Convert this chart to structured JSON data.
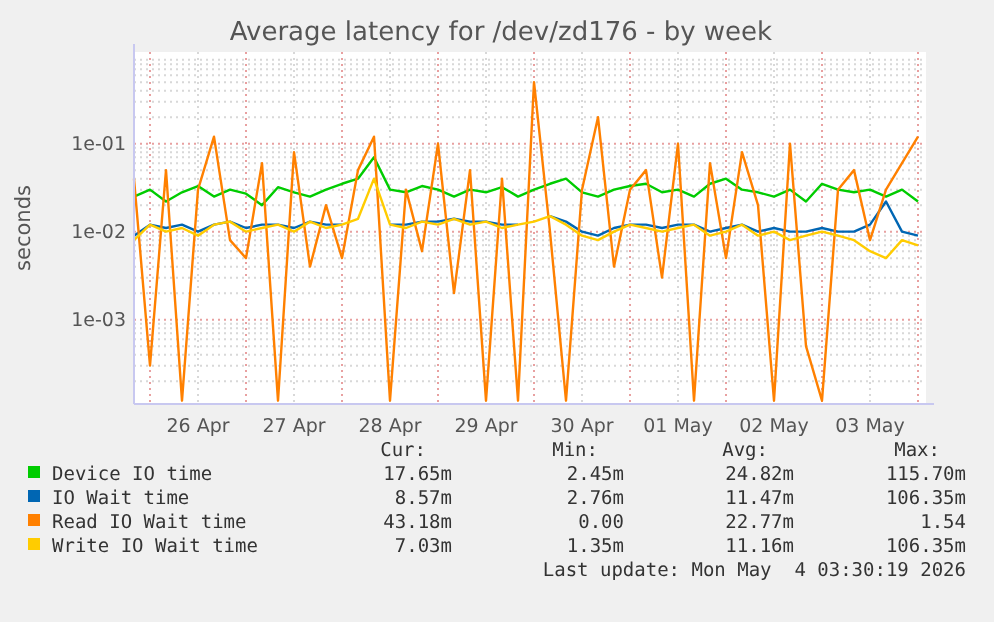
{
  "chart_data": {
    "type": "line",
    "title": "Average latency for /dev/zd176 - by week",
    "ylabel": "seconds",
    "log": "y",
    "grid": true,
    "legend": "bottom",
    "marker": "none",
    "line_style": "solid",
    "xlim": [
      "2026-04-25T20:00",
      "2026-05-04T02:00"
    ],
    "xticks": [
      {
        "value": "2026-04-26T00:00",
        "label": null
      },
      {
        "value": "2026-04-26T12:00",
        "label": "26 Apr"
      },
      {
        "value": "2026-04-27T00:00",
        "label": null
      },
      {
        "value": "2026-04-27T12:00",
        "label": "27 Apr"
      },
      {
        "value": "2026-04-28T00:00",
        "label": null
      },
      {
        "value": "2026-04-28T12:00",
        "label": "28 Apr"
      },
      {
        "value": "2026-04-29T00:00",
        "label": null
      },
      {
        "value": "2026-04-29T12:00",
        "label": "29 Apr"
      },
      {
        "value": "2026-04-30T00:00",
        "label": null
      },
      {
        "value": "2026-04-30T12:00",
        "label": "30 Apr"
      },
      {
        "value": "2026-05-01T00:00",
        "label": null
      },
      {
        "value": "2026-05-01T12:00",
        "label": "01 May"
      },
      {
        "value": "2026-05-02T00:00",
        "label": null
      },
      {
        "value": "2026-05-02T12:00",
        "label": "02 May"
      },
      {
        "value": "2026-05-03T00:00",
        "label": null
      },
      {
        "value": "2026-05-03T12:00",
        "label": "03 May"
      },
      {
        "value": "2026-05-04T00:00",
        "label": null
      }
    ],
    "ylim": [
      0.00011,
      1.1
    ],
    "yticks": [
      {
        "value": 0.001,
        "label": "1e-03"
      },
      {
        "value": 0.01,
        "label": "1e-02"
      },
      {
        "value": 0.1,
        "label": "1e-01"
      }
    ],
    "x": [
      "2026-04-25T20:00",
      "2026-04-26T00:00",
      "2026-04-26T04:00",
      "2026-04-26T08:00",
      "2026-04-26T12:00",
      "2026-04-26T16:00",
      "2026-04-26T20:00",
      "2026-04-27T00:00",
      "2026-04-27T04:00",
      "2026-04-27T08:00",
      "2026-04-27T12:00",
      "2026-04-27T16:00",
      "2026-04-27T20:00",
      "2026-04-28T00:00",
      "2026-04-28T04:00",
      "2026-04-28T08:00",
      "2026-04-28T12:00",
      "2026-04-28T16:00",
      "2026-04-28T20:00",
      "2026-04-29T00:00",
      "2026-04-29T04:00",
      "2026-04-29T08:00",
      "2026-04-29T12:00",
      "2026-04-29T16:00",
      "2026-04-29T20:00",
      "2026-04-30T00:00",
      "2026-04-30T04:00",
      "2026-04-30T08:00",
      "2026-04-30T12:00",
      "2026-04-30T16:00",
      "2026-04-30T20:00",
      "2026-05-01T00:00",
      "2026-05-01T04:00",
      "2026-05-01T08:00",
      "2026-05-01T12:00",
      "2026-05-01T16:00",
      "2026-05-01T20:00",
      "2026-05-02T00:00",
      "2026-05-02T04:00",
      "2026-05-02T08:00",
      "2026-05-02T12:00",
      "2026-05-02T16:00",
      "2026-05-02T20:00",
      "2026-05-03T00:00",
      "2026-05-03T04:00",
      "2026-05-03T08:00",
      "2026-05-03T12:00",
      "2026-05-03T16:00",
      "2026-05-03T20:00",
      "2026-05-04T00:00"
    ],
    "series": [
      {
        "name": "Device IO time",
        "color": "#00cc00",
        "values": [
          0.025,
          0.03,
          0.022,
          0.028,
          0.033,
          0.025,
          0.03,
          0.027,
          0.02,
          0.032,
          0.028,
          0.025,
          0.03,
          0.035,
          0.04,
          0.07,
          0.03,
          0.028,
          0.033,
          0.03,
          0.025,
          0.03,
          0.028,
          0.032,
          0.025,
          0.03,
          0.035,
          0.04,
          0.028,
          0.025,
          0.03,
          0.033,
          0.035,
          0.028,
          0.03,
          0.025,
          0.035,
          0.04,
          0.03,
          0.028,
          0.025,
          0.03,
          0.022,
          0.035,
          0.03,
          0.028,
          0.03,
          0.025,
          0.03,
          0.022
        ]
      },
      {
        "name": "IO Wait time",
        "color": "#0066b3",
        "values": [
          0.009,
          0.012,
          0.011,
          0.012,
          0.01,
          0.012,
          0.013,
          0.011,
          0.012,
          0.012,
          0.011,
          0.013,
          0.012,
          0.012,
          null,
          null,
          0.012,
          0.012,
          0.013,
          0.013,
          0.014,
          0.013,
          0.013,
          0.012,
          0.012,
          null,
          0.015,
          0.013,
          0.01,
          0.009,
          0.011,
          0.012,
          0.012,
          0.011,
          0.012,
          0.012,
          0.01,
          0.011,
          0.012,
          0.01,
          0.011,
          0.01,
          0.01,
          0.011,
          0.01,
          0.01,
          0.012,
          0.022,
          0.01,
          0.009
        ]
      },
      {
        "name": "Read IO Wait time",
        "color": "#ff8000",
        "values": [
          0.04,
          0.0003,
          0.05,
          0.00012,
          0.03,
          0.12,
          0.008,
          0.005,
          0.06,
          0.00012,
          0.08,
          0.004,
          0.02,
          0.005,
          0.05,
          0.12,
          0.00012,
          0.03,
          0.006,
          0.1,
          0.002,
          0.05,
          0.00012,
          0.04,
          0.00012,
          0.5,
          0.01,
          0.00012,
          0.03,
          0.2,
          0.004,
          0.03,
          0.05,
          0.003,
          0.1,
          0.00012,
          0.06,
          0.005,
          0.08,
          0.02,
          0.00012,
          0.1,
          0.0005,
          0.00012,
          0.03,
          0.05,
          0.008,
          0.03,
          0.06,
          0.12
        ]
      },
      {
        "name": "Write IO Wait time",
        "color": "#ffcc00",
        "values": [
          0.008,
          0.012,
          0.01,
          0.011,
          0.009,
          0.012,
          0.013,
          0.01,
          0.011,
          0.012,
          0.01,
          0.013,
          0.011,
          0.012,
          0.014,
          0.04,
          0.012,
          0.011,
          0.013,
          0.012,
          0.014,
          0.012,
          0.013,
          0.011,
          0.012,
          0.013,
          0.015,
          0.012,
          0.009,
          0.008,
          0.01,
          0.012,
          0.011,
          0.01,
          0.011,
          0.012,
          0.009,
          0.01,
          0.012,
          0.009,
          0.01,
          0.008,
          0.009,
          0.01,
          0.009,
          0.008,
          0.006,
          0.005,
          0.008,
          0.007
        ]
      }
    ],
    "annotations": [
      "Cur:",
      "Min:",
      "Avg:",
      "Max:",
      "17.65m",
      "2.45m",
      "24.82m",
      "115.70m",
      "8.57m",
      "2.76m",
      "11.47m",
      "106.35m",
      "43.18m",
      "0.00",
      "22.77m",
      "1.54",
      "7.03m",
      "1.35m",
      "11.16m",
      "106.35m",
      "Last update: Mon May  4 03:30:19 2026"
    ]
  }
}
